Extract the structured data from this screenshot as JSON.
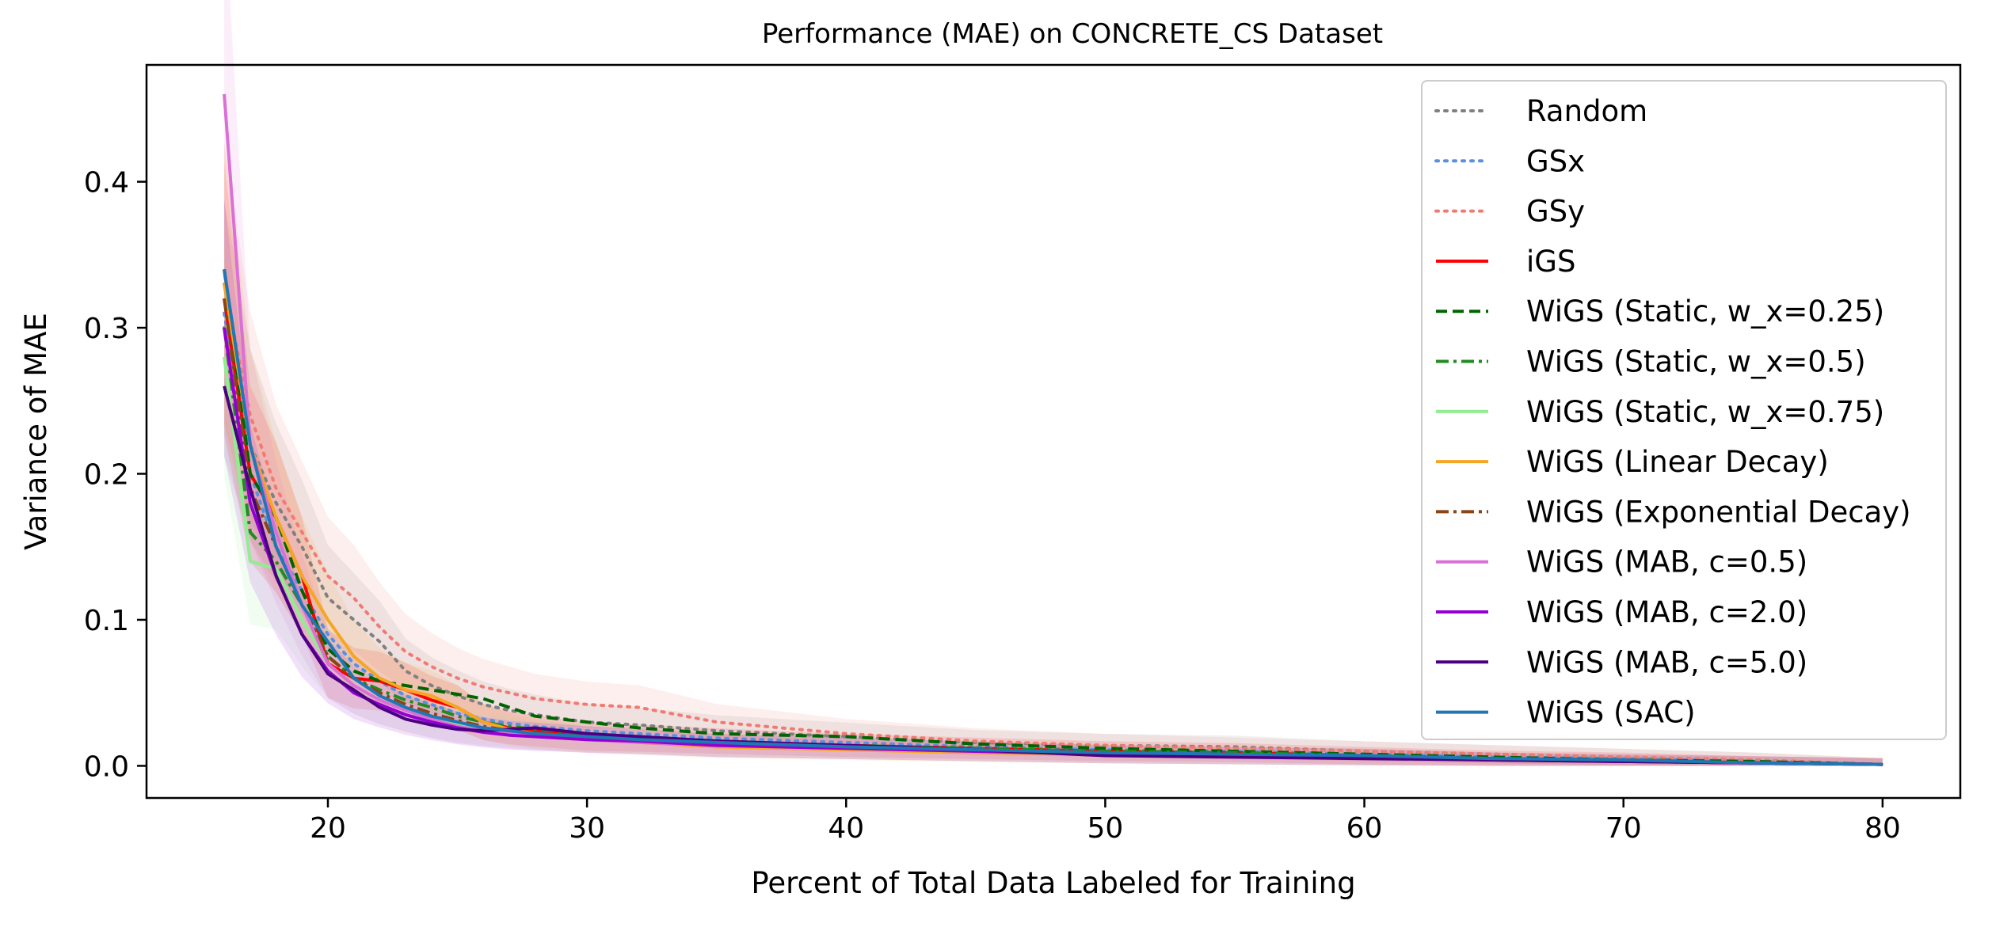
{
  "chart_data": {
    "type": "line",
    "title": "Performance (MAE) on CONCRETE_CS Dataset",
    "xlabel": "Percent of Total Data Labeled for Training",
    "ylabel": "Variance of MAE",
    "xlim": [
      13,
      83
    ],
    "ylim": [
      -0.022,
      0.48
    ],
    "xticks": [
      20,
      30,
      40,
      50,
      60,
      70,
      80
    ],
    "yticks": [
      0.0,
      0.1,
      0.2,
      0.3,
      0.4
    ],
    "ytick_labels": [
      "0.0",
      "0.1",
      "0.2",
      "0.3",
      "0.4"
    ],
    "grid": false,
    "legend_position": "upper right",
    "x": [
      16,
      17,
      18,
      19,
      20,
      21,
      22,
      23,
      24,
      25,
      26,
      27,
      28,
      30,
      32,
      35,
      40,
      45,
      50,
      55,
      60,
      65,
      70,
      75,
      80
    ],
    "series": [
      {
        "name": "Random",
        "color": "#808080",
        "dash": "dotted",
        "band": true,
        "values": [
          0.3,
          0.22,
          0.18,
          0.15,
          0.115,
          0.1,
          0.085,
          0.065,
          0.055,
          0.048,
          0.042,
          0.038,
          0.035,
          0.03,
          0.028,
          0.024,
          0.02,
          0.016,
          0.014,
          0.013,
          0.01,
          0.008,
          0.006,
          0.004,
          0.001
        ]
      },
      {
        "name": "GSx",
        "color": "#5b8fe0",
        "dash": "dotted",
        "band": false,
        "values": [
          0.31,
          0.2,
          0.15,
          0.12,
          0.09,
          0.07,
          0.058,
          0.048,
          0.042,
          0.036,
          0.032,
          0.029,
          0.027,
          0.024,
          0.022,
          0.019,
          0.016,
          0.013,
          0.011,
          0.01,
          0.008,
          0.006,
          0.005,
          0.003,
          0.001
        ]
      },
      {
        "name": "GSy",
        "color": "#f07b72",
        "dash": "dotted",
        "band": true,
        "values": [
          0.33,
          0.24,
          0.19,
          0.16,
          0.13,
          0.115,
          0.095,
          0.078,
          0.068,
          0.06,
          0.054,
          0.05,
          0.046,
          0.042,
          0.04,
          0.03,
          0.022,
          0.017,
          0.014,
          0.012,
          0.01,
          0.008,
          0.006,
          0.004,
          0.001
        ]
      },
      {
        "name": "iGS",
        "color": "#ff0000",
        "dash": "solid",
        "band": true,
        "values": [
          0.32,
          0.2,
          0.17,
          0.13,
          0.07,
          0.06,
          0.058,
          0.052,
          0.045,
          0.04,
          0.03,
          0.026,
          0.024,
          0.02,
          0.019,
          0.017,
          0.014,
          0.012,
          0.01,
          0.009,
          0.007,
          0.005,
          0.004,
          0.002,
          0.001
        ]
      },
      {
        "name": "WiGS (Static, w_x=0.25)",
        "color": "#006400",
        "dash": "dashed",
        "band": false,
        "values": [
          0.34,
          0.2,
          0.17,
          0.12,
          0.08,
          0.065,
          0.058,
          0.055,
          0.052,
          0.049,
          0.046,
          0.04,
          0.034,
          0.03,
          0.026,
          0.022,
          0.02,
          0.015,
          0.012,
          0.01,
          0.008,
          0.006,
          0.004,
          0.003,
          0.001
        ]
      },
      {
        "name": "WiGS (Static, w_x=0.5)",
        "color": "#228b22",
        "dash": "dashdot",
        "band": false,
        "values": [
          0.3,
          0.16,
          0.14,
          0.11,
          0.075,
          0.06,
          0.052,
          0.045,
          0.04,
          0.034,
          0.03,
          0.027,
          0.025,
          0.022,
          0.02,
          0.017,
          0.014,
          0.012,
          0.01,
          0.009,
          0.007,
          0.005,
          0.004,
          0.002,
          0.001
        ]
      },
      {
        "name": "WiGS (Static, w_x=0.75)",
        "color": "#90ee90",
        "dash": "solid",
        "band": true,
        "values": [
          0.28,
          0.14,
          0.135,
          0.1,
          0.07,
          0.055,
          0.045,
          0.038,
          0.032,
          0.028,
          0.025,
          0.023,
          0.021,
          0.019,
          0.017,
          0.014,
          0.012,
          0.01,
          0.008,
          0.007,
          0.006,
          0.004,
          0.003,
          0.002,
          0.001
        ]
      },
      {
        "name": "WiGS (Linear Decay)",
        "color": "#f5a623",
        "dash": "solid",
        "band": true,
        "values": [
          0.33,
          0.22,
          0.17,
          0.13,
          0.1,
          0.075,
          0.06,
          0.052,
          0.048,
          0.04,
          0.03,
          0.025,
          0.022,
          0.018,
          0.016,
          0.013,
          0.011,
          0.009,
          0.008,
          0.007,
          0.006,
          0.004,
          0.003,
          0.002,
          0.001
        ]
      },
      {
        "name": "WiGS (Exponential Decay)",
        "color": "#8b4513",
        "dash": "dashdot",
        "band": false,
        "values": [
          0.32,
          0.19,
          0.15,
          0.11,
          0.075,
          0.06,
          0.05,
          0.042,
          0.036,
          0.031,
          0.027,
          0.024,
          0.022,
          0.02,
          0.018,
          0.016,
          0.013,
          0.011,
          0.009,
          0.008,
          0.006,
          0.005,
          0.003,
          0.002,
          0.001
        ]
      },
      {
        "name": "WiGS (MAB, c=0.5)",
        "color": "#da70d6",
        "dash": "solid",
        "band": true,
        "values": [
          0.46,
          0.22,
          0.16,
          0.11,
          0.07,
          0.055,
          0.045,
          0.038,
          0.032,
          0.027,
          0.024,
          0.022,
          0.02,
          0.018,
          0.016,
          0.014,
          0.012,
          0.01,
          0.008,
          0.007,
          0.006,
          0.004,
          0.003,
          0.002,
          0.001
        ]
      },
      {
        "name": "WiGS (MAB, c=2.0)",
        "color": "#9400d3",
        "dash": "solid",
        "band": true,
        "values": [
          0.3,
          0.18,
          0.13,
          0.09,
          0.065,
          0.05,
          0.042,
          0.035,
          0.03,
          0.026,
          0.023,
          0.021,
          0.02,
          0.018,
          0.017,
          0.014,
          0.012,
          0.01,
          0.008,
          0.007,
          0.006,
          0.004,
          0.003,
          0.002,
          0.001
        ]
      },
      {
        "name": "WiGS (MAB, c=5.0)",
        "color": "#4b0082",
        "dash": "solid",
        "band": false,
        "values": [
          0.26,
          0.19,
          0.13,
          0.09,
          0.063,
          0.052,
          0.04,
          0.032,
          0.028,
          0.025,
          0.024,
          0.025,
          0.026,
          0.022,
          0.02,
          0.017,
          0.014,
          0.011,
          0.007,
          0.006,
          0.005,
          0.004,
          0.003,
          0.002,
          0.001
        ]
      },
      {
        "name": "WiGS (SAC)",
        "color": "#1f77b4",
        "dash": "solid",
        "band": false,
        "values": [
          0.34,
          0.22,
          0.15,
          0.11,
          0.085,
          0.06,
          0.048,
          0.04,
          0.034,
          0.03,
          0.026,
          0.024,
          0.022,
          0.02,
          0.018,
          0.016,
          0.013,
          0.011,
          0.009,
          0.008,
          0.007,
          0.005,
          0.004,
          0.002,
          0.001
        ]
      }
    ]
  }
}
